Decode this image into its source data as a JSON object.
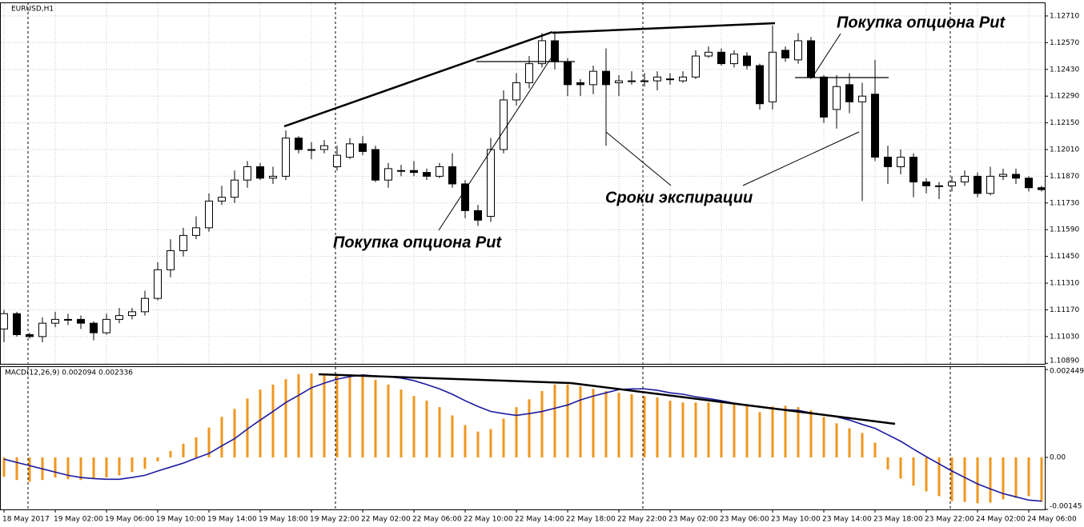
{
  "chart_data": [
    {
      "type": "candlestick",
      "title": "EURUSD,H1",
      "categories": [
        "18 May 2017",
        null,
        null,
        null,
        "19 May 02:00",
        null,
        null,
        null,
        "19 May 06:00",
        null,
        null,
        null,
        "19 May 10:00",
        null,
        null,
        null,
        "19 May 14:00",
        null,
        null,
        null,
        "19 May 18:00",
        null,
        null,
        null,
        "19 May 22:00",
        null,
        null,
        null,
        "22 May 02:00",
        null,
        null,
        null,
        "22 May 06:00",
        null,
        null,
        null,
        "22 May 10:00",
        null,
        null,
        null,
        "22 May 14:00",
        null,
        null,
        null,
        "22 May 18:00",
        null,
        null,
        null,
        "22 May 22:00",
        null,
        null,
        null,
        "23 May 02:00",
        null,
        null,
        null,
        "23 May 06:00",
        null,
        null,
        null,
        "23 May 10:00",
        null,
        null,
        null,
        "23 May 14:00",
        null,
        null,
        null,
        "23 May 18:00",
        null,
        null,
        null,
        "23 May 22:00",
        null,
        null,
        null,
        "24 May 02:00",
        null,
        null,
        null,
        "24 May 06:00",
        null
      ],
      "open": [
        1.1107,
        1.1115,
        1.1104,
        1.1103,
        1.111,
        1.1112,
        1.1112,
        1.111,
        1.1105,
        1.1112,
        1.1114,
        1.1116,
        1.1123,
        1.1138,
        1.1148,
        1.1156,
        1.116,
        1.1174,
        1.1176,
        1.1185,
        1.1192,
        1.1186,
        1.1187,
        1.1207,
        1.1201,
        1.1201,
        1.1192,
        1.1197,
        1.1204,
        1.1201,
        1.1185,
        1.119,
        1.119,
        1.1189,
        1.1187,
        1.1192,
        1.1183,
        1.1169,
        1.1166,
        1.1201,
        1.1227,
        1.1236,
        1.1246,
        1.1258,
        1.1247,
        1.1236,
        1.1235,
        1.1242,
        1.1236,
        1.1237,
        1.1237,
        1.1237,
        1.1238,
        1.1237,
        1.1239,
        1.125,
        1.1252,
        1.1246,
        1.125,
        1.1245,
        1.1226,
        1.1253,
        1.1248,
        1.1258,
        1.1239,
        1.1222,
        1.1235,
        1.1226,
        1.123,
        1.1197,
        1.1192,
        1.1197,
        1.1184,
        1.1182,
        1.1182,
        1.1184,
        1.1187,
        1.1178,
        1.1187,
        1.1188,
        1.1186,
        1.1181
      ],
      "high": [
        1.1117,
        1.1116,
        1.1105,
        1.1113,
        1.1116,
        1.1115,
        1.1114,
        1.1111,
        1.1115,
        1.1118,
        1.1118,
        1.1127,
        1.1142,
        1.1154,
        1.116,
        1.1166,
        1.1178,
        1.1182,
        1.119,
        1.1195,
        1.1194,
        1.1192,
        1.1211,
        1.1208,
        1.1205,
        1.1206,
        1.1203,
        1.1207,
        1.1208,
        1.1203,
        1.1194,
        1.1193,
        1.1195,
        1.1191,
        1.1194,
        1.1199,
        1.1185,
        1.1172,
        1.1207,
        1.1232,
        1.1241,
        1.125,
        1.1262,
        1.1263,
        1.1249,
        1.1238,
        1.1245,
        1.1254,
        1.124,
        1.1242,
        1.1241,
        1.1242,
        1.1241,
        1.1242,
        1.1253,
        1.1255,
        1.1254,
        1.1253,
        1.1252,
        1.1246,
        1.1266,
        1.1255,
        1.1262,
        1.126,
        1.124,
        1.124,
        1.1241,
        1.1236,
        1.1248,
        1.1203,
        1.1201,
        1.1199,
        1.1186,
        1.1184,
        1.1187,
        1.119,
        1.1189,
        1.1192,
        1.1191,
        1.1191,
        1.1187,
        1.1182
      ],
      "low": [
        1.11,
        1.1103,
        1.1102,
        1.11,
        1.1108,
        1.1109,
        1.1107,
        1.1101,
        1.1104,
        1.111,
        1.1112,
        1.1114,
        1.1122,
        1.1134,
        1.1145,
        1.1154,
        1.1158,
        1.1172,
        1.1173,
        1.1181,
        1.1185,
        1.1183,
        1.1185,
        1.1199,
        1.1196,
        1.1199,
        1.119,
        1.1196,
        1.1198,
        1.1184,
        1.1181,
        1.1187,
        1.1187,
        1.1185,
        1.1186,
        1.1181,
        1.1165,
        1.1161,
        1.1163,
        1.1199,
        1.1224,
        1.1233,
        1.1244,
        1.1243,
        1.1229,
        1.1229,
        1.123,
        1.1203,
        1.1229,
        1.1235,
        1.1234,
        1.1232,
        1.1235,
        1.1236,
        1.1238,
        1.1249,
        1.1245,
        1.1244,
        1.1243,
        1.1222,
        1.1222,
        1.1247,
        1.1246,
        1.1238,
        1.1215,
        1.1212,
        1.122,
        1.1174,
        1.1195,
        1.1183,
        1.1188,
        1.1176,
        1.1178,
        1.1175,
        1.1179,
        1.1182,
        1.1176,
        1.1177,
        1.1185,
        1.1183,
        1.1179,
        1.1179
      ],
      "close": [
        1.1115,
        1.1104,
        1.1103,
        1.111,
        1.1112,
        1.1112,
        1.111,
        1.1105,
        1.1112,
        1.1114,
        1.1116,
        1.1123,
        1.1138,
        1.1148,
        1.1156,
        1.116,
        1.1174,
        1.1176,
        1.1185,
        1.1192,
        1.1186,
        1.1187,
        1.1207,
        1.1201,
        1.1201,
        1.1203,
        1.1198,
        1.1204,
        1.12,
        1.1185,
        1.1191,
        1.119,
        1.1189,
        1.1187,
        1.1192,
        1.1183,
        1.1169,
        1.1164,
        1.1201,
        1.1227,
        1.1236,
        1.1246,
        1.1258,
        1.1247,
        1.1235,
        1.1235,
        1.1242,
        1.1235,
        1.1237,
        1.1237,
        1.1237,
        1.1239,
        1.1238,
        1.1239,
        1.125,
        1.1252,
        1.1246,
        1.1251,
        1.1245,
        1.1225,
        1.1252,
        1.1249,
        1.1258,
        1.1239,
        1.1218,
        1.1234,
        1.1226,
        1.1229,
        1.1197,
        1.1192,
        1.1197,
        1.1184,
        1.1182,
        1.1182,
        1.1184,
        1.1187,
        1.1178,
        1.1187,
        1.1188,
        1.1186,
        1.1181,
        1.118
      ],
      "up_color": "#ffffff",
      "down_color": "#000000",
      "ylim": [
        1.10887,
        1.12781
      ],
      "yticks": [
        {
          "value": 1.1271,
          "label": "1.12710"
        },
        {
          "value": 1.1257,
          "label": "1.12570"
        },
        {
          "value": 1.1243,
          "label": "1.12430"
        },
        {
          "value": 1.1229,
          "label": "1.12290"
        },
        {
          "value": 1.1215,
          "label": "1.12150"
        },
        {
          "value": 1.1201,
          "label": "1.12010"
        },
        {
          "value": 1.1187,
          "label": "1.11870"
        },
        {
          "value": 1.1173,
          "label": "1.11730"
        },
        {
          "value": 1.1159,
          "label": "1.11590"
        },
        {
          "value": 1.1145,
          "label": "1.11450"
        },
        {
          "value": 1.1131,
          "label": "1.11310"
        },
        {
          "value": 1.1117,
          "label": "1.11170"
        },
        {
          "value": 1.1103,
          "label": "1.11030"
        },
        {
          "value": 1.1089,
          "label": "1.10890"
        }
      ],
      "grid": true,
      "annotations": [
        "Покупка опциона Put",
        "Сроки экспирации",
        "Покупка опциона Put"
      ]
    },
    {
      "type": "macd",
      "title": "MACD(12,26,9) 0.002094 0.002336",
      "histogram": {
        "color": "#f0961e",
        "values": [
          -0.00054,
          -0.00063,
          -0.00068,
          -0.00063,
          -0.00056,
          -0.00061,
          -0.00063,
          -0.00059,
          -0.00056,
          -0.0005,
          -0.00041,
          -0.00032,
          -0.00011,
          0.00018,
          0.00038,
          0.00056,
          0.00083,
          0.00113,
          0.00135,
          0.00164,
          0.00189,
          0.00203,
          0.00218,
          0.00232,
          0.00234,
          0.00234,
          0.00232,
          0.0023,
          0.00225,
          0.00216,
          0.00203,
          0.00189,
          0.00171,
          0.00158,
          0.0014,
          0.00117,
          0.0009,
          0.00072,
          0.00079,
          0.00108,
          0.0014,
          0.00162,
          0.00185,
          0.00203,
          0.00203,
          0.00198,
          0.00191,
          0.00185,
          0.0018,
          0.00176,
          0.00171,
          0.00167,
          0.00158,
          0.00153,
          0.00153,
          0.00153,
          0.00151,
          0.00149,
          0.00144,
          0.00126,
          0.00142,
          0.00144,
          0.0014,
          0.00131,
          0.00113,
          0.00095,
          0.00081,
          0.00068,
          0.00041,
          -0.00034,
          -0.00059,
          -0.00079,
          -0.00095,
          -0.00108,
          -0.00122,
          -0.00124,
          -0.00128,
          -0.00126,
          -0.00117,
          -0.00113,
          -0.00108,
          -0.00124
        ]
      },
      "signal": {
        "color": "#1a1aa0",
        "values": [
          -5e-05,
          -0.00014,
          -0.00023,
          -0.00032,
          -0.00041,
          -0.0005,
          -0.00056,
          -0.00059,
          -0.00061,
          -0.00061,
          -0.00056,
          -0.0005,
          -0.00038,
          -0.00027,
          -0.00016,
          -2e-05,
          0.00011,
          0.00032,
          0.00052,
          0.00079,
          0.00104,
          0.00128,
          0.00153,
          0.00173,
          0.00194,
          0.00207,
          0.00218,
          0.00225,
          0.0023,
          0.00227,
          0.00225,
          0.00221,
          0.00214,
          0.00203,
          0.00191,
          0.00176,
          0.00158,
          0.00142,
          0.00128,
          0.00122,
          0.00117,
          0.00122,
          0.00128,
          0.00137,
          0.00146,
          0.0016,
          0.00171,
          0.0018,
          0.00189,
          0.00191,
          0.00191,
          0.00187,
          0.0018,
          0.00176,
          0.00169,
          0.00164,
          0.00158,
          0.00151,
          0.00146,
          0.00142,
          0.00137,
          0.00133,
          0.00131,
          0.00124,
          0.00119,
          0.00113,
          0.00104,
          0.00092,
          0.00081,
          0.00063,
          0.00045,
          0.00023,
          2e-05,
          -0.00018,
          -0.00038,
          -0.00056,
          -0.00074,
          -0.00088,
          -0.00101,
          -0.0011,
          -0.00119,
          -0.00122
        ]
      },
      "ylim": [
        -0.00145,
        0.00254
      ],
      "yticks": [
        0.002449,
        {
          "value": 0,
          "label": "0.00"
        },
        -0.00145
      ]
    }
  ]
}
